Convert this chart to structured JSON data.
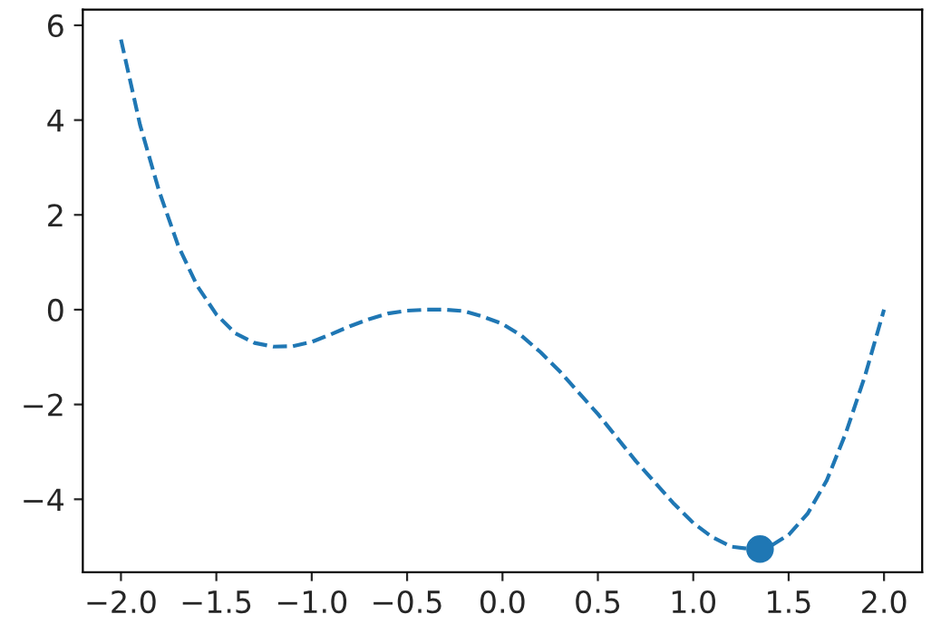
{
  "chart_data": {
    "type": "line",
    "series": [
      {
        "color": "#1f77b4",
        "line_style": "dashed",
        "marker": "none",
        "x": [
          -2.0,
          -1.9,
          -1.8,
          -1.7,
          -1.6,
          -1.5,
          -1.4,
          -1.3,
          -1.2,
          -1.1,
          -1.0,
          -0.9,
          -0.8,
          -0.7,
          -0.6,
          -0.5,
          -0.4,
          -0.3,
          -0.2,
          -0.1,
          0.0,
          0.1,
          0.2,
          0.3,
          0.4,
          0.5,
          0.6,
          0.7,
          0.8,
          0.9,
          1.0,
          1.1,
          1.2,
          1.3,
          1.4,
          1.5,
          1.6,
          1.7,
          1.8,
          1.9,
          2.0
        ],
        "values": [
          5.7,
          3.9,
          2.5,
          1.35,
          0.5,
          -0.1,
          -0.5,
          -0.7,
          -0.78,
          -0.77,
          -0.68,
          -0.52,
          -0.35,
          -0.2,
          -0.08,
          -0.02,
          0.0,
          0.0,
          -0.03,
          -0.15,
          -0.3,
          -0.55,
          -0.9,
          -1.3,
          -1.75,
          -2.2,
          -2.7,
          -3.2,
          -3.65,
          -4.1,
          -4.5,
          -4.8,
          -5.0,
          -5.05,
          -5.0,
          -4.75,
          -4.3,
          -3.6,
          -2.6,
          -1.4,
          0.0
        ]
      },
      {
        "type": "scatter",
        "color": "#1f77b4",
        "marker": "circle",
        "x": [
          1.35
        ],
        "values": [
          -5.05
        ]
      }
    ],
    "xlim": [
      -2.2,
      2.2
    ],
    "xticks": [
      {
        "value": -2.0,
        "label": "−2.0"
      },
      {
        "value": -1.5,
        "label": "−1.5"
      },
      {
        "value": -1.0,
        "label": "−1.0"
      },
      {
        "value": -0.5,
        "label": "−0.5"
      },
      {
        "value": 0.0,
        "label": "0.0"
      },
      {
        "value": 0.5,
        "label": "0.5"
      },
      {
        "value": 1.0,
        "label": "1.0"
      },
      {
        "value": 1.5,
        "label": "1.5"
      },
      {
        "value": 2.0,
        "label": "2.0"
      }
    ],
    "ylim": [
      -5.54,
      6.33
    ],
    "yticks": [
      {
        "value": -4,
        "label": "−4"
      },
      {
        "value": -2,
        "label": "−2"
      },
      0,
      2,
      4,
      6
    ],
    "grid": false
  }
}
